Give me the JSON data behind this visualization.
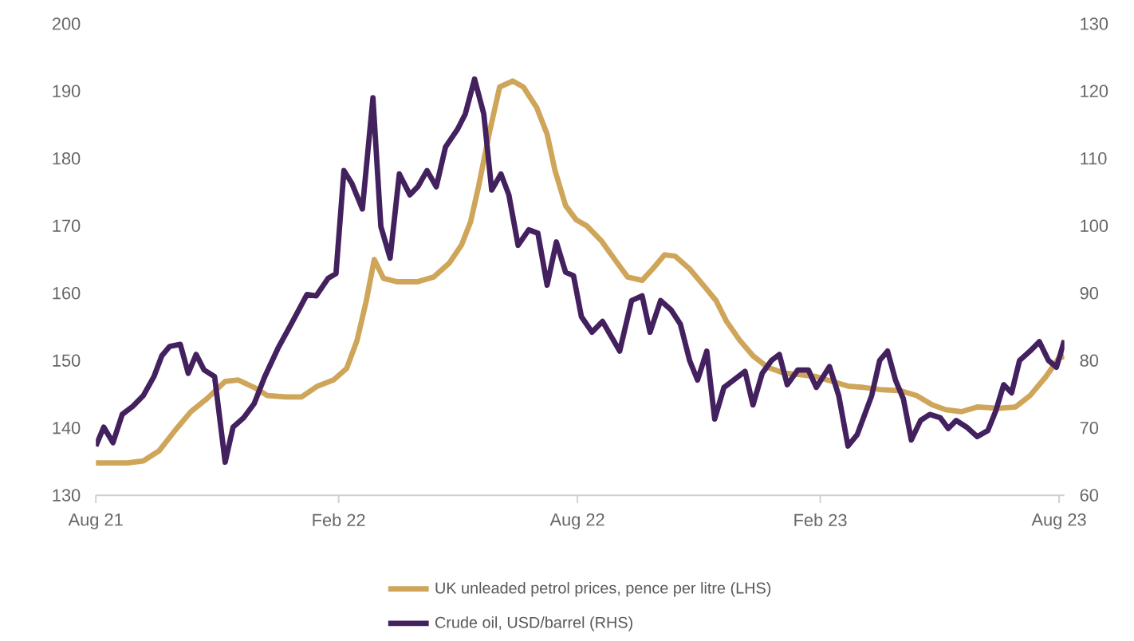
{
  "chart_data": {
    "type": "line",
    "xlim": [
      "2021-08-01",
      "2023-08-05"
    ],
    "xticks": [
      {
        "value": "2021-08-01",
        "label": "Aug 21"
      },
      {
        "value": "2022-02-01",
        "label": "Feb 22"
      },
      {
        "value": "2022-08-01",
        "label": "Aug 22"
      },
      {
        "value": "2023-02-01",
        "label": "Feb 23"
      },
      {
        "value": "2023-08-01",
        "label": "Aug 23"
      }
    ],
    "ylim": [
      130,
      200
    ],
    "yticks": [
      130,
      140,
      150,
      160,
      170,
      180,
      190,
      200
    ],
    "y2lim": [
      60,
      130
    ],
    "y2ticks": [
      60,
      70,
      80,
      90,
      100,
      110,
      120,
      130
    ],
    "legend": "bottom",
    "series": [
      {
        "name": "UK unleaded petrol prices, pence per litre (LHS)",
        "color": "#cfa55a",
        "axis": "y",
        "x": [
          "2021-08-01",
          "2021-08-25",
          "2021-09-06",
          "2021-09-18",
          "2021-09-30",
          "2021-10-12",
          "2021-10-24",
          "2021-11-07",
          "2021-11-17",
          "2021-11-29",
          "2021-12-09",
          "2021-12-23",
          "2022-01-04",
          "2022-01-16",
          "2022-01-28",
          "2022-02-07",
          "2022-02-15",
          "2022-02-22",
          "2022-02-28",
          "2022-03-07",
          "2022-03-17",
          "2022-04-02",
          "2022-04-14",
          "2022-04-26",
          "2022-05-05",
          "2022-05-12",
          "2022-05-18",
          "2022-05-26",
          "2022-06-03",
          "2022-06-13",
          "2022-06-21",
          "2022-07-01",
          "2022-07-09",
          "2022-07-15",
          "2022-07-23",
          "2022-07-31",
          "2022-08-08",
          "2022-08-19",
          "2022-08-30",
          "2022-09-08",
          "2022-09-19",
          "2022-09-27",
          "2022-10-06",
          "2022-10-14",
          "2022-10-25",
          "2022-11-06",
          "2022-11-14",
          "2022-11-22",
          "2022-12-02",
          "2022-12-12",
          "2022-12-23",
          "2023-01-05",
          "2023-01-17",
          "2023-01-29",
          "2023-02-10",
          "2023-02-22",
          "2023-03-06",
          "2023-03-18",
          "2023-04-03",
          "2023-04-15",
          "2023-04-27",
          "2023-05-07",
          "2023-05-19",
          "2023-05-31",
          "2023-06-16",
          "2023-06-29",
          "2023-07-10",
          "2023-07-22",
          "2023-08-01",
          "2023-08-05"
        ],
        "values": [
          134.8,
          134.8,
          135.1,
          136.6,
          139.6,
          142.4,
          144.3,
          146.9,
          147.1,
          146.0,
          144.8,
          144.6,
          144.6,
          146.2,
          147.1,
          148.8,
          153.0,
          158.9,
          165.0,
          162.2,
          161.7,
          161.7,
          162.4,
          164.5,
          167.1,
          170.6,
          175.8,
          183.6,
          190.6,
          191.5,
          190.6,
          187.6,
          183.6,
          178.2,
          173.0,
          170.9,
          170.0,
          167.8,
          164.8,
          162.4,
          161.9,
          163.6,
          165.7,
          165.5,
          163.6,
          160.8,
          158.9,
          155.8,
          153.0,
          150.7,
          149.0,
          148.1,
          147.9,
          147.6,
          146.9,
          146.2,
          146.0,
          145.7,
          145.5,
          144.8,
          143.4,
          142.7,
          142.4,
          143.1,
          142.9,
          143.1,
          144.8,
          147.6,
          150.4,
          150.6
        ]
      },
      {
        "name": "Crude oil, USD/barrel (RHS)",
        "color": "#43215f",
        "axis": "y2",
        "x": [
          "2021-08-01",
          "2021-08-07",
          "2021-08-14",
          "2021-08-21",
          "2021-08-29",
          "2021-09-06",
          "2021-09-14",
          "2021-09-20",
          "2021-09-26",
          "2021-10-04",
          "2021-10-10",
          "2021-10-16",
          "2021-10-22",
          "2021-10-30",
          "2021-11-07",
          "2021-11-13",
          "2021-11-21",
          "2021-11-29",
          "2021-12-07",
          "2021-12-17",
          "2021-12-27",
          "2022-01-08",
          "2022-01-15",
          "2022-01-24",
          "2022-01-30",
          "2022-02-05",
          "2022-02-11",
          "2022-02-19",
          "2022-02-27",
          "2022-03-05",
          "2022-03-12",
          "2022-03-19",
          "2022-03-27",
          "2022-04-02",
          "2022-04-09",
          "2022-04-16",
          "2022-04-23",
          "2022-05-02",
          "2022-05-08",
          "2022-05-15",
          "2022-05-22",
          "2022-05-28",
          "2022-06-04",
          "2022-06-10",
          "2022-06-17",
          "2022-06-25",
          "2022-07-02",
          "2022-07-09",
          "2022-07-16",
          "2022-07-23",
          "2022-07-29",
          "2022-08-04",
          "2022-08-12",
          "2022-08-20",
          "2022-09-02",
          "2022-09-11",
          "2022-09-19",
          "2022-09-25",
          "2022-10-03",
          "2022-10-11",
          "2022-10-18",
          "2022-10-25",
          "2022-10-31",
          "2022-11-07",
          "2022-11-13",
          "2022-11-20",
          "2022-11-28",
          "2022-12-06",
          "2022-12-12",
          "2022-12-19",
          "2022-12-26",
          "2023-01-01",
          "2023-01-07",
          "2023-01-15",
          "2023-01-23",
          "2023-01-29",
          "2023-02-08",
          "2023-02-15",
          "2023-02-22",
          "2023-03-01",
          "2023-03-12",
          "2023-03-18",
          "2023-03-24",
          "2023-03-30",
          "2023-04-05",
          "2023-04-11",
          "2023-04-18",
          "2023-04-25",
          "2023-05-03",
          "2023-05-09",
          "2023-05-15",
          "2023-05-23",
          "2023-05-31",
          "2023-06-08",
          "2023-06-14",
          "2023-06-20",
          "2023-06-26",
          "2023-07-02",
          "2023-07-10",
          "2023-07-17",
          "2023-07-24",
          "2023-07-30",
          "2023-08-05"
        ],
        "values": [
          67.3,
          70.1,
          67.8,
          72.0,
          73.2,
          74.8,
          77.6,
          80.7,
          82.1,
          82.4,
          78.1,
          80.9,
          78.6,
          77.6,
          64.9,
          70.1,
          71.5,
          73.6,
          77.6,
          81.8,
          85.4,
          89.8,
          89.6,
          92.2,
          92.9,
          108.2,
          106.3,
          102.5,
          119.0,
          99.9,
          95.2,
          107.7,
          104.6,
          105.8,
          108.2,
          105.8,
          111.7,
          114.3,
          116.6,
          121.8,
          116.6,
          105.3,
          107.7,
          104.6,
          97.1,
          99.4,
          98.9,
          91.2,
          97.6,
          93.1,
          92.6,
          86.5,
          84.2,
          85.8,
          81.4,
          88.9,
          89.6,
          84.2,
          88.9,
          87.5,
          85.4,
          80.0,
          77.1,
          81.4,
          71.3,
          76.0,
          77.2,
          78.4,
          73.4,
          78.1,
          80.0,
          80.9,
          76.4,
          78.6,
          78.6,
          76.0,
          79.1,
          74.8,
          67.3,
          69.0,
          74.8,
          80.0,
          81.4,
          77.1,
          74.3,
          68.2,
          71.1,
          72.0,
          71.5,
          69.9,
          71.1,
          70.1,
          68.7,
          69.6,
          72.5,
          76.4,
          75.2,
          80.0,
          81.4,
          82.8,
          80.0,
          79.0,
          83.0
        ]
      }
    ]
  }
}
